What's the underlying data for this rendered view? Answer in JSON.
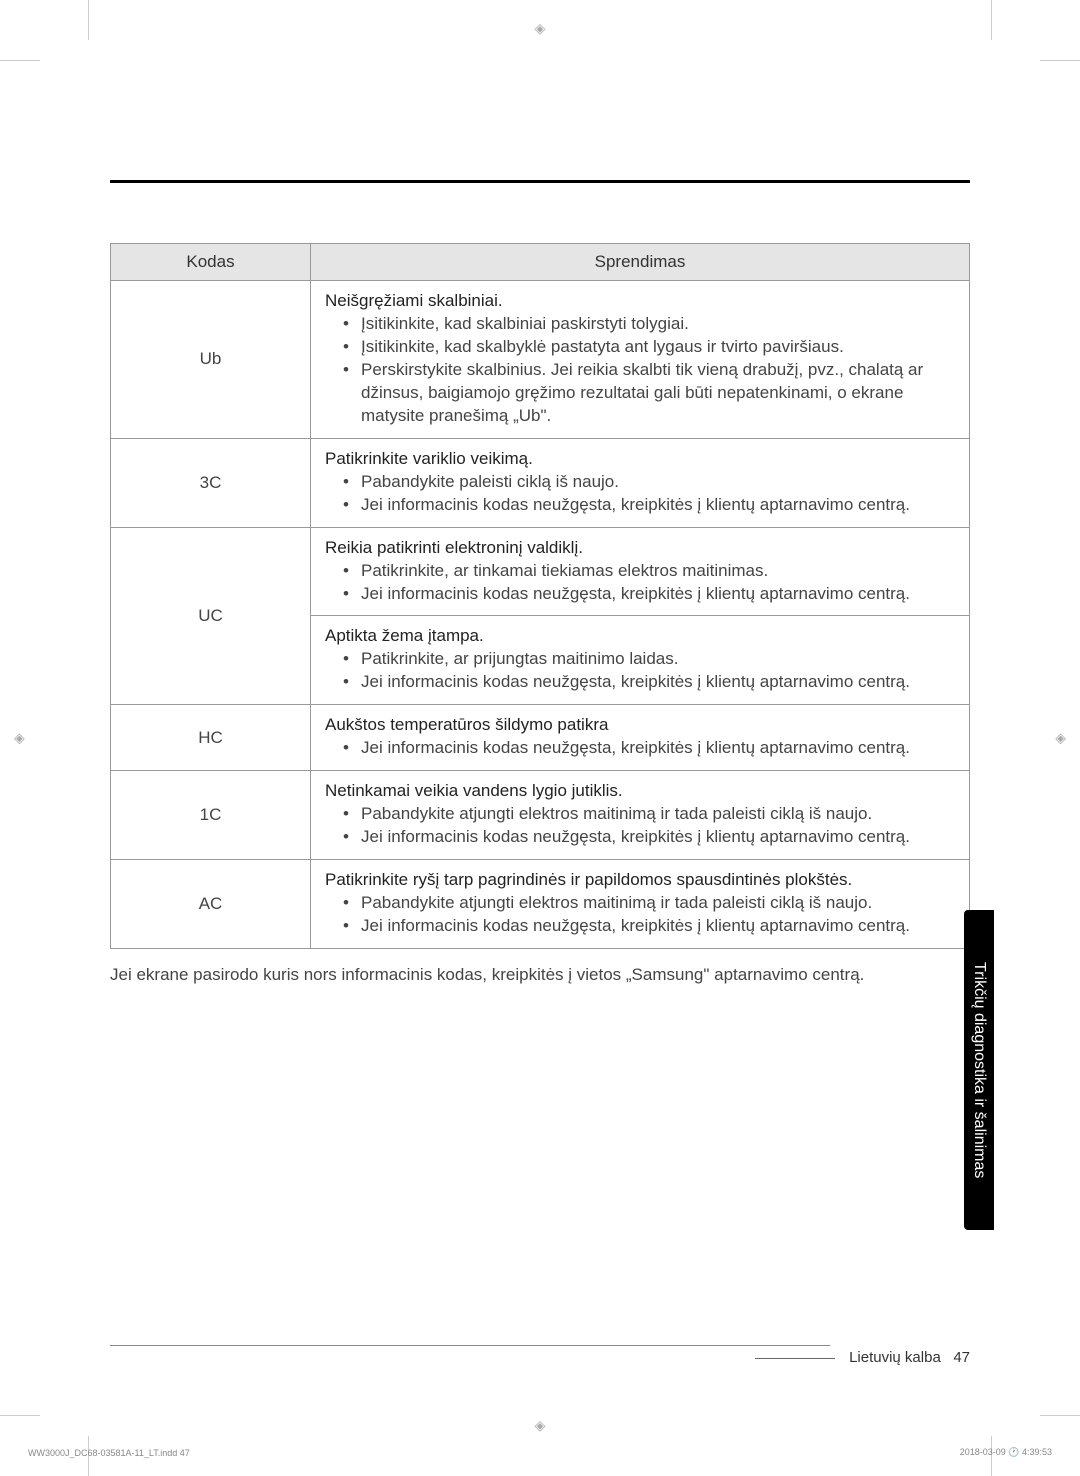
{
  "table": {
    "headers": {
      "code": "Kodas",
      "solution": "Sprendimas"
    },
    "rows": [
      {
        "code": "Ub",
        "title": "Neišgręžiami skalbiniai.",
        "items": [
          "Įsitikinkite, kad skalbiniai paskirstyti tolygiai.",
          "Įsitikinkite, kad skalbyklė pastatyta ant lygaus ir tvirto paviršiaus.",
          "Perskirstykite skalbinius. Jei reikia skalbti tik vieną drabužį, pvz., chalatą ar džinsus, baigiamojo gręžimo rezultatai gali būti nepatenkinami, o ekrane matysite pranešimą „Ub\"."
        ]
      },
      {
        "code": "3C",
        "title": "Patikrinkite variklio veikimą.",
        "items": [
          "Pabandykite paleisti ciklą iš naujo.",
          "Jei informacinis kodas neužgęsta, kreipkitės į klientų aptarnavimo centrą."
        ]
      },
      {
        "code": "UC",
        "span": 2,
        "sections": [
          {
            "title": "Reikia patikrinti elektroninį valdiklį.",
            "items": [
              "Patikrinkite, ar tinkamai tiekiamas elektros maitinimas.",
              "Jei informacinis kodas neužgęsta, kreipkitės į klientų aptarnavimo centrą."
            ]
          },
          {
            "title": "Aptikta žema įtampa.",
            "items": [
              "Patikrinkite, ar prijungtas maitinimo laidas.",
              "Jei informacinis kodas neužgęsta, kreipkitės į klientų aptarnavimo centrą."
            ]
          }
        ]
      },
      {
        "code": "HC",
        "title": "Aukštos temperatūros šildymo patikra",
        "items": [
          "Jei informacinis kodas neužgęsta, kreipkitės į klientų aptarnavimo centrą."
        ]
      },
      {
        "code": "1C",
        "title": "Netinkamai veikia vandens lygio jutiklis.",
        "items": [
          "Pabandykite atjungti elektros maitinimą ir tada paleisti ciklą iš naujo.",
          "Jei informacinis kodas neužgęsta, kreipkitės į klientų aptarnavimo centrą."
        ]
      },
      {
        "code": "AC",
        "title": "Patikrinkite ryšį tarp pagrindinės ir papildomos spausdintinės plokštės.",
        "items": [
          "Pabandykite atjungti elektros maitinimą ir tada paleisti ciklą iš naujo.",
          "Jei informacinis kodas neužgęsta, kreipkitės į klientų aptarnavimo centrą."
        ]
      }
    ]
  },
  "afterText": "Jei ekrane pasirodo kuris nors informacinis kodas, kreipkitės į vietos „Samsung\" aptarnavimo centrą.",
  "sideTab": "Trikčių diagnostika ir šalinimas",
  "footer": {
    "language": "Lietuvių kalba",
    "page": "47"
  },
  "printFooter": {
    "left": "WW3000J_DC68-03581A-11_LT.indd   47",
    "right": "2018-03-09   🕐 4:39:53"
  },
  "colors": {
    "headerBg": "#e5e5e5",
    "border": "#999999",
    "text": "#333333",
    "sideTabBg": "#000000",
    "sideTabText": "#ffffff"
  }
}
